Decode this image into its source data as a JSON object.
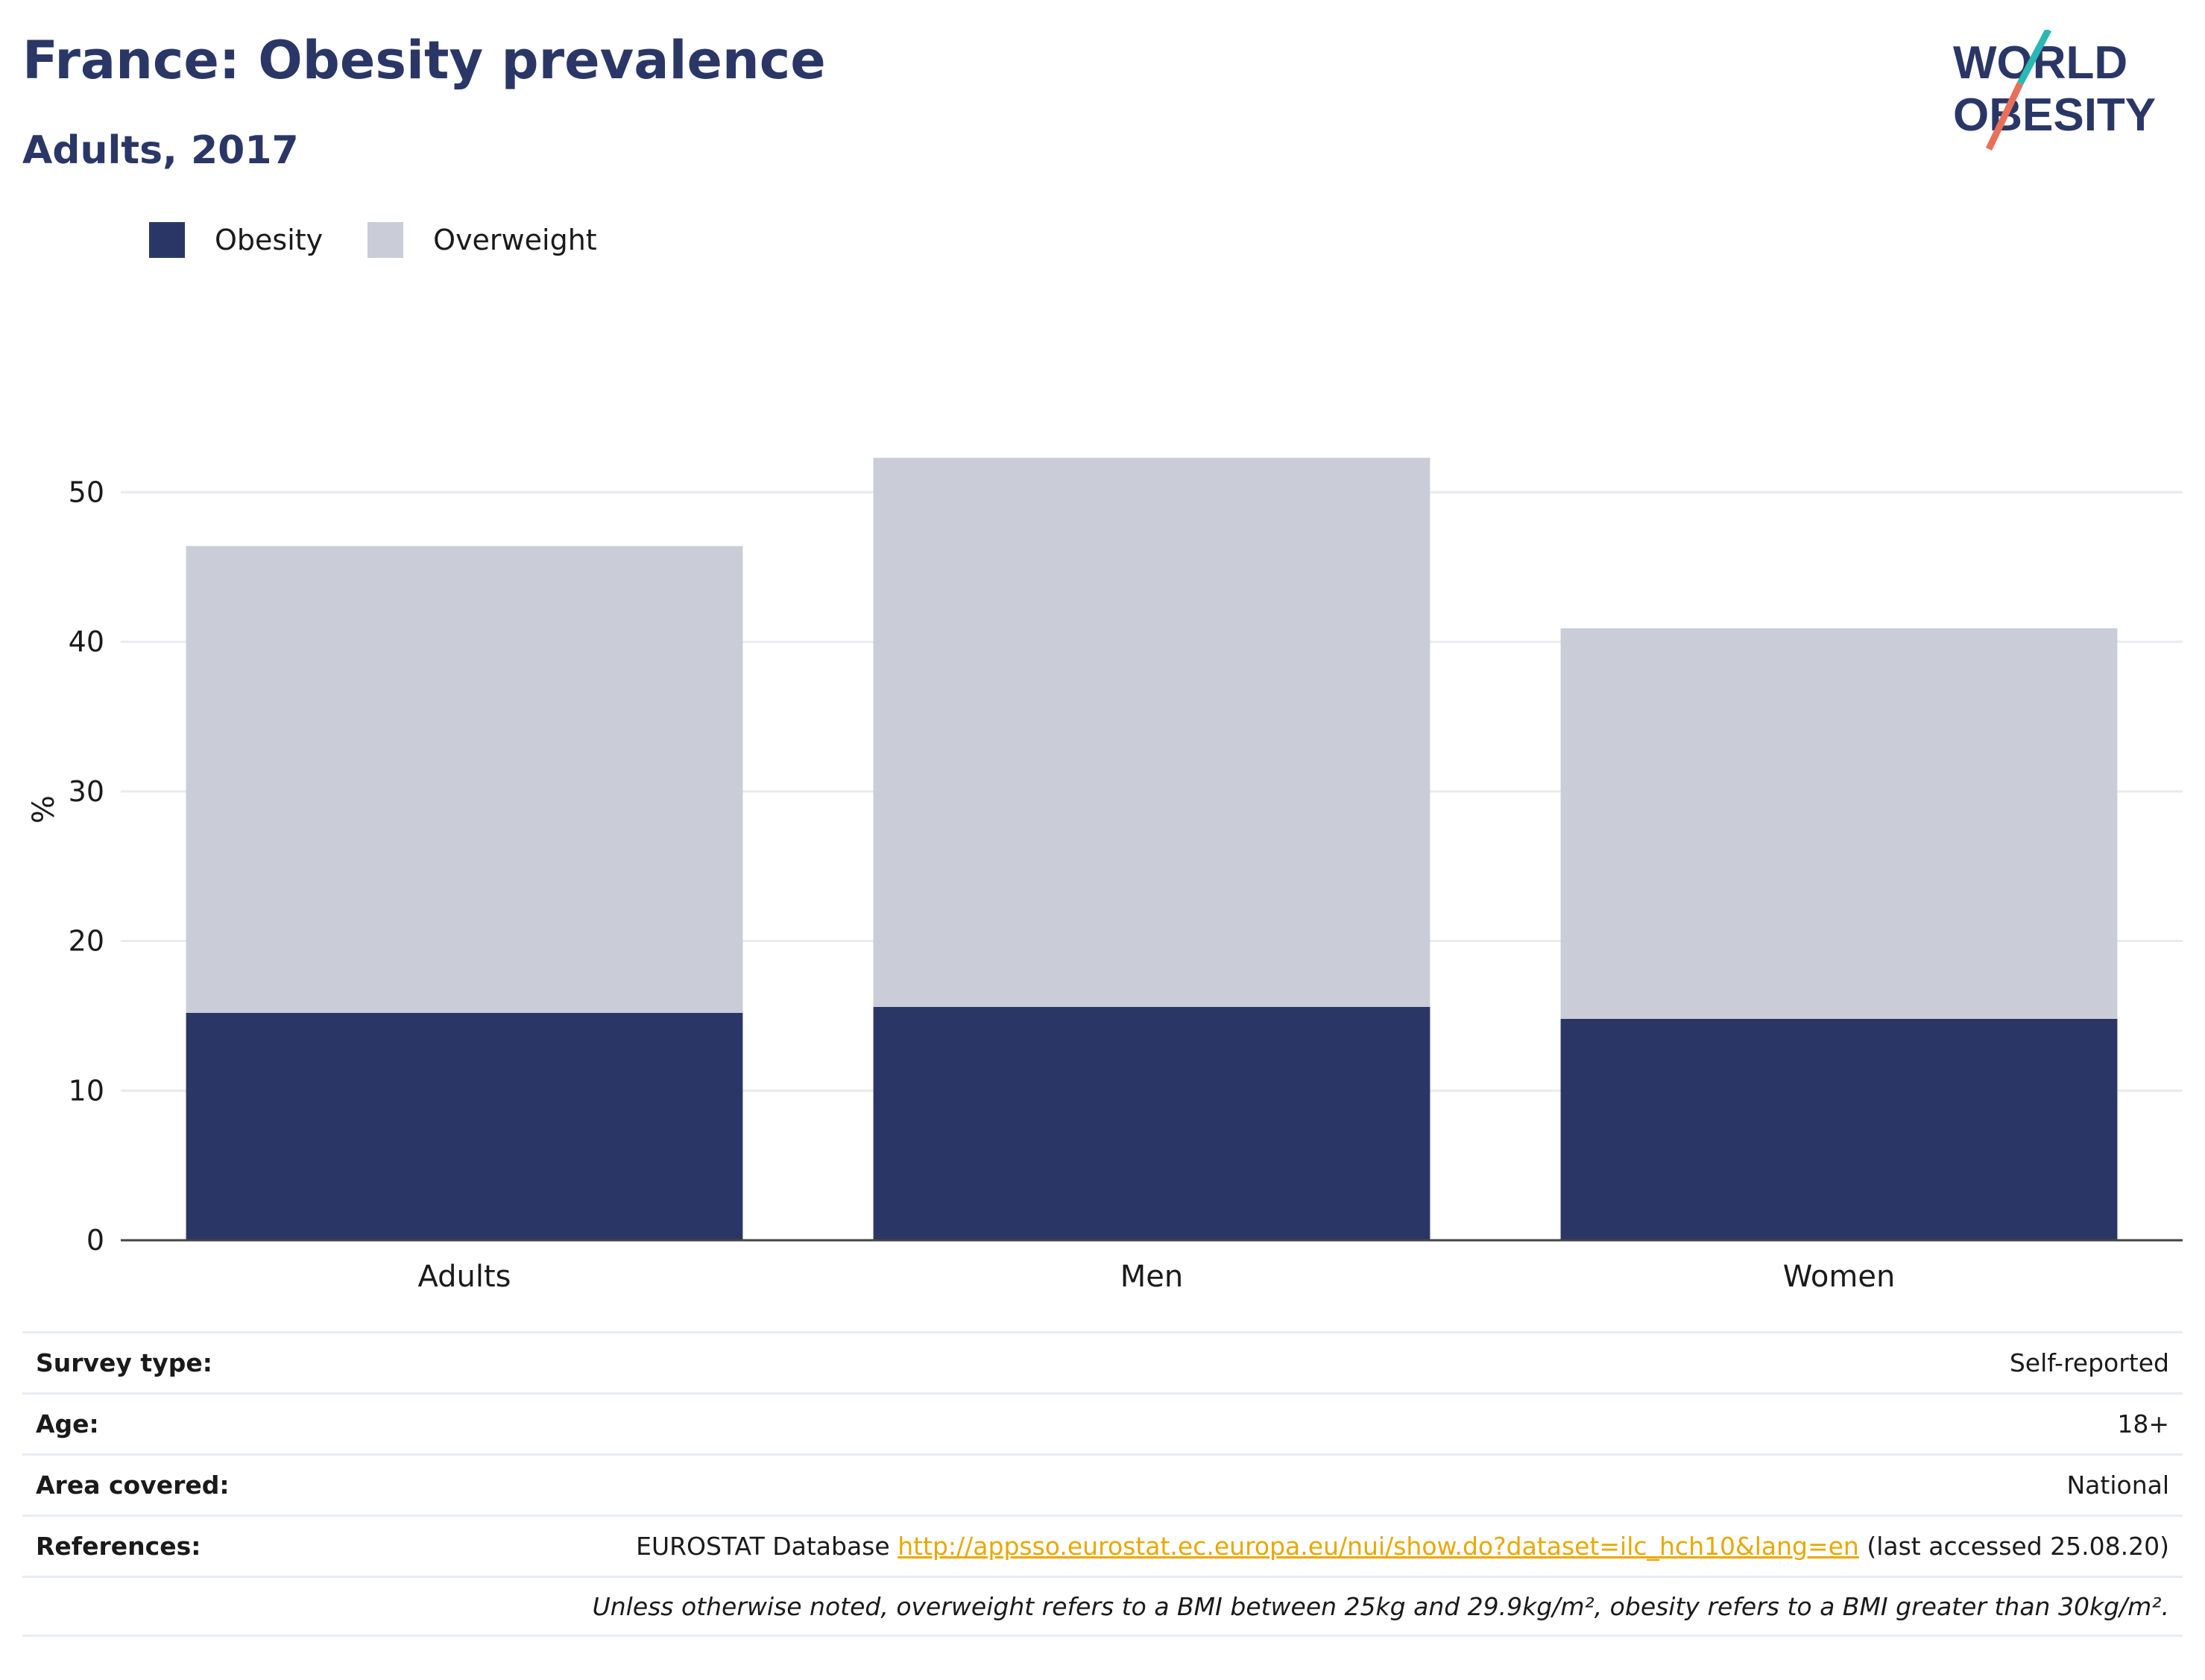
{
  "header": {
    "title": "France: Obesity prevalence",
    "subtitle": "Adults, 2017"
  },
  "logo": {
    "line1": "WORLD",
    "line2": "OBESITY"
  },
  "colors": {
    "obesity": "#2a3766",
    "overweight": "#caccd8",
    "accent_teal": "#2bb7b3",
    "accent_coral": "#e8705a",
    "link": "#e8a800"
  },
  "chart_data": {
    "type": "bar",
    "stacked": true,
    "categories": [
      "Adults",
      "Men",
      "Women"
    ],
    "series": [
      {
        "name": "Obesity",
        "values": [
          15.2,
          15.6,
          14.8
        ]
      },
      {
        "name": "Overweight",
        "values": [
          31.2,
          36.7,
          26.1
        ]
      }
    ],
    "ylabel": "%",
    "ylim": [
      0,
      55
    ],
    "yticks": [
      0,
      10,
      20,
      30,
      40,
      50
    ],
    "grid": true,
    "legend": "top-left"
  },
  "info": {
    "survey_type_label": "Survey type:",
    "survey_type": "Self-reported",
    "age_label": "Age:",
    "age": "18+",
    "area_label": "Area covered:",
    "area": "National",
    "references_label": "References:",
    "ref_source": "EUROSTAT Database",
    "ref_link": "http://appsso.eurostat.ec.europa.eu/nui/show.do?dataset=ilc_hch10&lang=en",
    "ref_accessed": "(last accessed 25.08.20)",
    "note": "Unless otherwise noted, overweight refers to a BMI between 25kg and 29.9kg/m², obesity refers to a BMI greater than 30kg/m²."
  }
}
